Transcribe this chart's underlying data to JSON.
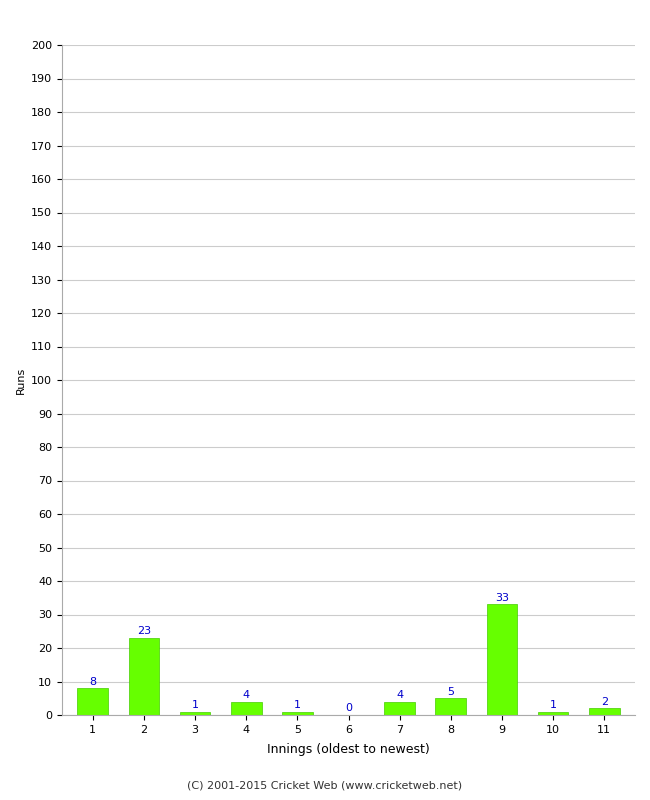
{
  "xlabel": "Innings (oldest to newest)",
  "ylabel": "Runs",
  "categories": [
    "1",
    "2",
    "3",
    "4",
    "5",
    "6",
    "7",
    "8",
    "9",
    "10",
    "11"
  ],
  "values": [
    8,
    23,
    1,
    4,
    1,
    0,
    4,
    5,
    33,
    1,
    2
  ],
  "bar_color": "#66ff00",
  "bar_edge_color": "#44cc00",
  "label_color": "#0000cc",
  "ylim": [
    0,
    200
  ],
  "yticks": [
    0,
    10,
    20,
    30,
    40,
    50,
    60,
    70,
    80,
    90,
    100,
    110,
    120,
    130,
    140,
    150,
    160,
    170,
    180,
    190,
    200
  ],
  "grid_color": "#cccccc",
  "background_color": "#ffffff",
  "footer": "(C) 2001-2015 Cricket Web (www.cricketweb.net)",
  "label_fontsize": 8,
  "tick_fontsize": 8,
  "ylabel_fontsize": 8,
  "xlabel_fontsize": 9,
  "footer_fontsize": 8
}
